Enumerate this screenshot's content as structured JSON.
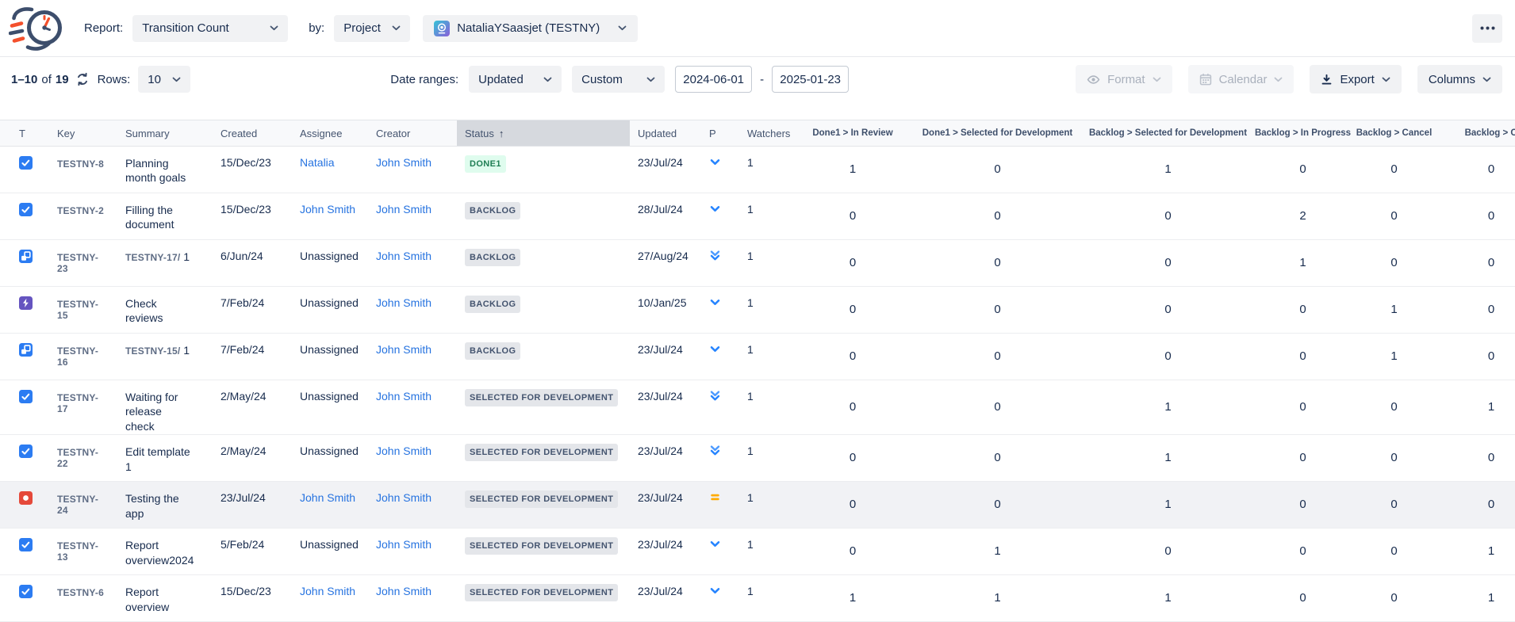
{
  "header": {
    "logo_icon": "speed-clock-logo",
    "report_label": "Report:",
    "report_value": "Transition Count",
    "by_label": "by:",
    "by_value": "Project",
    "project_avatar_icon": "project-avatar",
    "project_value": "NataliaYSaasjet (TESTNY)",
    "more_icon": "meatball-menu"
  },
  "toolbar": {
    "pagination": {
      "range": "1–10",
      "of_label": "of",
      "total": "19",
      "refresh_icon": "refresh"
    },
    "rows_label": "Rows:",
    "rows_value": "10",
    "date_ranges_label": "Date ranges:",
    "date_field_value": "Updated",
    "date_mode_value": "Custom",
    "date_from": "2024-06-01",
    "date_separator": "-",
    "date_to": "2025-01-23",
    "format_label": "Format",
    "calendar_label": "Calendar",
    "export_label": "Export",
    "columns_label": "Columns"
  },
  "table": {
    "sorted_by": "Status",
    "sort_direction": "ascending",
    "columns": [
      {
        "label": "T",
        "kind": "icon"
      },
      {
        "label": "Key",
        "kind": "text"
      },
      {
        "label": "Summary",
        "kind": "text"
      },
      {
        "label": "Created",
        "kind": "text"
      },
      {
        "label": "Assignee",
        "kind": "text"
      },
      {
        "label": "Creator",
        "kind": "text"
      },
      {
        "label": "Status",
        "kind": "text",
        "sorted": true
      },
      {
        "label": "Updated",
        "kind": "text"
      },
      {
        "label": "P",
        "kind": "text"
      },
      {
        "label": "Watchers",
        "kind": "text"
      },
      {
        "label": "Done1 > In Review",
        "kind": "count"
      },
      {
        "label": "Done1 > Selected for Development",
        "kind": "count"
      },
      {
        "label": "Backlog > Selected for Development",
        "kind": "count"
      },
      {
        "label": "Backlog > In Progress",
        "kind": "count"
      },
      {
        "label": "Backlog > Cancel",
        "kind": "count"
      },
      {
        "label": "Backlog > O",
        "kind": "count"
      }
    ],
    "rows": [
      {
        "type": "task",
        "key": "TESTNY-8",
        "summary": "Planning month goals",
        "created": "15/Dec/23",
        "assignee": "Natalia",
        "assignee_link": true,
        "creator": "John Smith",
        "status": "DONE1",
        "status_kind": "done",
        "updated": "23/Jul/24",
        "priority": "low",
        "watchers": "1",
        "counts": [
          1,
          0,
          1,
          0,
          0,
          0
        ],
        "highlighted": false
      },
      {
        "type": "task",
        "key": "TESTNY-2",
        "summary": "Filling the document",
        "created": "15/Dec/23",
        "assignee": "John Smith",
        "assignee_link": true,
        "creator": "John Smith",
        "status": "BACKLOG",
        "status_kind": "default",
        "updated": "28/Jul/24",
        "priority": "low",
        "watchers": "1",
        "counts": [
          0,
          0,
          0,
          2,
          0,
          0
        ],
        "highlighted": false
      },
      {
        "type": "subtask",
        "key": "TESTNY-23",
        "summary_prefix": "TESTNY-17/",
        "summary": "1",
        "created": "6/Jun/24",
        "assignee": "Unassigned",
        "assignee_link": false,
        "creator": "John Smith",
        "status": "BACKLOG",
        "status_kind": "default",
        "updated": "27/Aug/24",
        "priority": "lowest",
        "watchers": "1",
        "counts": [
          0,
          0,
          0,
          1,
          0,
          0
        ],
        "highlighted": false
      },
      {
        "type": "epic",
        "key": "TESTNY-15",
        "summary": "Check reviews",
        "created": "7/Feb/24",
        "assignee": "Unassigned",
        "assignee_link": false,
        "creator": "John Smith",
        "status": "BACKLOG",
        "status_kind": "default",
        "updated": "10/Jan/25",
        "priority": "low",
        "watchers": "1",
        "counts": [
          0,
          0,
          0,
          0,
          1,
          0
        ],
        "highlighted": false
      },
      {
        "type": "subtask",
        "key": "TESTNY-16",
        "summary_prefix": "TESTNY-15/",
        "summary": "1",
        "created": "7/Feb/24",
        "assignee": "Unassigned",
        "assignee_link": false,
        "creator": "John Smith",
        "status": "BACKLOG",
        "status_kind": "default",
        "updated": "23/Jul/24",
        "priority": "low",
        "watchers": "1",
        "counts": [
          0,
          0,
          0,
          0,
          1,
          0
        ],
        "highlighted": false
      },
      {
        "type": "task",
        "key": "TESTNY-17",
        "summary": "Waiting for release check",
        "created": "2/May/24",
        "assignee": "Unassigned",
        "assignee_link": false,
        "creator": "John Smith",
        "status": "SELECTED FOR DEVELOPMENT",
        "status_kind": "default",
        "updated": "23/Jul/24",
        "priority": "lowest",
        "watchers": "1",
        "counts": [
          0,
          0,
          1,
          0,
          0,
          1
        ],
        "highlighted": false
      },
      {
        "type": "task",
        "key": "TESTNY-22",
        "summary": "Edit template 1",
        "created": "2/May/24",
        "assignee": "Unassigned",
        "assignee_link": false,
        "creator": "John Smith",
        "status": "SELECTED FOR DEVELOPMENT",
        "status_kind": "default",
        "updated": "23/Jul/24",
        "priority": "lowest",
        "watchers": "1",
        "counts": [
          0,
          0,
          1,
          0,
          0,
          0
        ],
        "highlighted": false
      },
      {
        "type": "bug",
        "key": "TESTNY-24",
        "summary": "Testing the app",
        "created": "23/Jul/24",
        "assignee": "John Smith",
        "assignee_link": true,
        "creator": "John Smith",
        "status": "SELECTED FOR DEVELOPMENT",
        "status_kind": "default",
        "updated": "23/Jul/24",
        "priority": "medium",
        "watchers": "1",
        "counts": [
          0,
          0,
          1,
          0,
          0,
          0
        ],
        "highlighted": true
      },
      {
        "type": "task",
        "key": "TESTNY-13",
        "summary": "Report overview2024",
        "created": "5/Feb/24",
        "assignee": "Unassigned",
        "assignee_link": false,
        "creator": "John Smith",
        "status": "SELECTED FOR DEVELOPMENT",
        "status_kind": "default",
        "updated": "23/Jul/24",
        "priority": "low",
        "watchers": "1",
        "counts": [
          0,
          1,
          0,
          0,
          0,
          1
        ],
        "highlighted": false
      },
      {
        "type": "task",
        "key": "TESTNY-6",
        "summary": "Report overview",
        "created": "15/Dec/23",
        "assignee": "John Smith",
        "assignee_link": true,
        "creator": "John Smith",
        "status": "SELECTED FOR DEVELOPMENT",
        "status_kind": "default",
        "updated": "23/Jul/24",
        "priority": "low",
        "watchers": "1",
        "counts": [
          1,
          1,
          1,
          0,
          0,
          1
        ],
        "highlighted": false
      }
    ]
  },
  "colors": {
    "accent_blue": "#2684FF",
    "link": "#2673E0",
    "logo_navy": "#3D4E6C",
    "logo_orange": "#F4502C",
    "done_badge_bg": "#DFFCEE",
    "done_badge_text": "#1F7E54",
    "badge_bg": "#E4E6EA",
    "badge_text": "#44546F",
    "priority_low": "#2684FF",
    "priority_medium": "#FFAB00",
    "epic_purple": "#6554C0",
    "bug_red": "#E5493A",
    "sorted_header_bg": "#D6D9DE"
  }
}
